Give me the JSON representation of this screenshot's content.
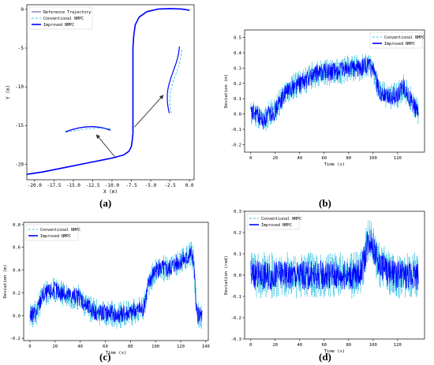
{
  "panel_labels": {
    "a": "(a)",
    "b": "(b)",
    "c": "(c)",
    "d": "(d)"
  },
  "colors": {
    "reference": "#1a1a8c",
    "conventional": "#00b4dc",
    "improved": "#0000ff",
    "arrow": "#333333"
  },
  "chart_data": [
    {
      "id": "a",
      "type": "line",
      "title": "",
      "xlabel": "X (m)",
      "ylabel": "Y (m)",
      "xlim": [
        -21,
        0.6
      ],
      "ylim": [
        -22,
        0.6
      ],
      "xticks": [
        -20.0,
        -17.5,
        -15.0,
        -12.5,
        -10.0,
        -7.5,
        -5.0,
        -2.5,
        0.0
      ],
      "xtick_labels": [
        "-20.0",
        "-17.5",
        "-15.0",
        "-12.5",
        "-10.0",
        "-7.5",
        "-5.0",
        "-2.5",
        "0.0"
      ],
      "yticks": [
        0,
        -5,
        -10,
        -15,
        -20
      ],
      "ytick_labels": [
        "0",
        "-5",
        "-10",
        "-15",
        "-20"
      ],
      "legend": {
        "position": "top-left",
        "entries": [
          "Reference Trajectory",
          "Conventional NMPC",
          "Improved NMPC"
        ]
      },
      "grid": false,
      "series": [
        {
          "name": "Reference Trajectory",
          "style": "solid",
          "x": [
            0,
            -1,
            -2.5,
            -4,
            -5.5,
            -6.5,
            -7,
            -7.2,
            -7.3,
            -7.3,
            -7.3,
            -7.3,
            -7.3,
            -7.4,
            -7.5,
            -7.8,
            -8.5,
            -10,
            -13,
            -16,
            -19,
            -21
          ],
          "y": [
            -0.1,
            0.05,
            0.1,
            0.05,
            -0.3,
            -1,
            -2,
            -3.5,
            -5,
            -8,
            -11,
            -14,
            -16,
            -17,
            -17.7,
            -18.3,
            -18.8,
            -19.2,
            -19.8,
            -20.4,
            -21,
            -21.3
          ]
        },
        {
          "name": "Conventional NMPC",
          "style": "dashed",
          "x": [
            0,
            -1,
            -2.5,
            -4,
            -5.5,
            -6.5,
            -7,
            -7.25,
            -7.35,
            -7.35,
            -7.35,
            -7.35,
            -7.35,
            -7.45,
            -7.55,
            -7.85,
            -8.55,
            -10,
            -13,
            -16,
            -19,
            -21
          ],
          "y": [
            -0.15,
            0.0,
            0.05,
            0.0,
            -0.35,
            -1.05,
            -2.05,
            -3.55,
            -5.05,
            -8.05,
            -11.05,
            -14.05,
            -16.05,
            -17.05,
            -17.75,
            -18.35,
            -18.85,
            -19.25,
            -19.85,
            -20.45,
            -21.05,
            -21.35
          ]
        },
        {
          "name": "Improved NMPC",
          "style": "solid-thick",
          "x": [
            0,
            -1,
            -2.5,
            -4,
            -5.5,
            -6.5,
            -7,
            -7.2,
            -7.3,
            -7.3,
            -7.3,
            -7.3,
            -7.3,
            -7.4,
            -7.5,
            -7.8,
            -8.5,
            -10,
            -13,
            -16,
            -19,
            -21
          ],
          "y": [
            -0.1,
            0.05,
            0.1,
            0.05,
            -0.3,
            -1,
            -2,
            -3.5,
            -5,
            -8,
            -11,
            -14,
            -16,
            -17,
            -17.7,
            -18.3,
            -18.8,
            -19.2,
            -19.8,
            -20.4,
            -21,
            -21.3
          ]
        }
      ]
    },
    {
      "id": "b",
      "type": "line",
      "title": "",
      "xlabel": "Time (s)",
      "ylabel": "Deviation (m)",
      "xlim": [
        -5,
        142
      ],
      "ylim": [
        -0.25,
        0.55
      ],
      "xticks": [
        0,
        20,
        40,
        60,
        80,
        100,
        120
      ],
      "yticks": [
        -0.2,
        -0.1,
        0.0,
        0.1,
        0.2,
        0.3,
        0.4,
        0.5
      ],
      "ytick_labels": [
        "-0.2",
        "-0.1",
        "0.0",
        "0.1",
        "0.2",
        "0.3",
        "0.4",
        "0.5"
      ],
      "legend": {
        "position": "top-right",
        "entries": [
          "Conventional NMPC",
          "Improved NMPC"
        ]
      },
      "grid": false,
      "envelope": {
        "t": [
          0,
          5,
          10,
          15,
          20,
          25,
          30,
          35,
          40,
          45,
          50,
          55,
          60,
          65,
          70,
          75,
          80,
          85,
          90,
          95,
          100,
          105,
          110,
          115,
          120,
          125,
          130,
          135,
          137
        ],
        "mean": [
          0.0,
          0.0,
          -0.05,
          0.0,
          0.02,
          0.1,
          0.15,
          0.18,
          0.2,
          0.22,
          0.25,
          0.27,
          0.28,
          0.27,
          0.28,
          0.28,
          0.3,
          0.3,
          0.3,
          0.32,
          0.28,
          0.15,
          0.12,
          0.12,
          0.12,
          0.18,
          0.1,
          0.03,
          0.0
        ],
        "spread_conv": 0.09,
        "spread_imp": 0.06
      }
    },
    {
      "id": "c",
      "type": "line",
      "title": "",
      "xlabel": "Time (s)",
      "ylabel": "Deviation (m)",
      "xlim": [
        -5,
        142
      ],
      "ylim": [
        -0.22,
        0.82
      ],
      "xticks": [
        0,
        20,
        40,
        60,
        80,
        100,
        120,
        140
      ],
      "yticks": [
        -0.2,
        0.0,
        0.2,
        0.4,
        0.6,
        0.8
      ],
      "ytick_labels": [
        "-0.2",
        "0.0",
        "0.2",
        "0.4",
        "0.6",
        "0.8"
      ],
      "legend": {
        "position": "top-left",
        "entries": [
          "Conventional NMPC",
          "Improved NMPC"
        ]
      },
      "grid": false,
      "envelope": {
        "t": [
          0,
          5,
          10,
          15,
          20,
          25,
          30,
          35,
          40,
          45,
          50,
          55,
          60,
          65,
          70,
          75,
          80,
          85,
          90,
          95,
          100,
          105,
          110,
          115,
          120,
          125,
          128,
          130,
          133,
          137
        ],
        "mean": [
          0.0,
          0.02,
          0.18,
          0.2,
          0.22,
          0.2,
          0.18,
          0.17,
          0.16,
          0.08,
          0.05,
          0.02,
          0.02,
          0.02,
          0.0,
          0.02,
          0.02,
          0.05,
          0.05,
          0.3,
          0.4,
          0.42,
          0.4,
          0.45,
          0.48,
          0.5,
          0.55,
          0.5,
          0.0,
          0.0
        ],
        "spread_conv": 0.12,
        "spread_imp": 0.08
      }
    },
    {
      "id": "d",
      "type": "line",
      "title": "",
      "xlabel": "Time (s)",
      "ylabel": "Deviation (rad)",
      "xlim": [
        -5,
        142
      ],
      "ylim": [
        -0.3,
        0.3
      ],
      "xticks": [
        0,
        20,
        40,
        60,
        80,
        100,
        120
      ],
      "yticks": [
        -0.3,
        -0.2,
        -0.1,
        0.0,
        0.1,
        0.2,
        0.3
      ],
      "ytick_labels": [
        "-0.3",
        "-0.2",
        "-0.1",
        "0.0",
        "0.1",
        "0.2",
        "0.3"
      ],
      "legend": {
        "position": "top-left",
        "entries": [
          "Conventional NMPC",
          "Improved NMPC"
        ]
      },
      "grid": false,
      "envelope": {
        "t": [
          0,
          10,
          20,
          30,
          40,
          50,
          60,
          70,
          80,
          85,
          90,
          93,
          95,
          98,
          100,
          105,
          110,
          115,
          120,
          125,
          130,
          135,
          137
        ],
        "mean": [
          0.0,
          0.0,
          0.0,
          0.0,
          0.0,
          0.0,
          0.0,
          0.0,
          0.0,
          0.0,
          0.02,
          0.08,
          0.15,
          0.17,
          0.13,
          0.05,
          0.03,
          0.0,
          0.0,
          0.0,
          0.0,
          0.0,
          0.0
        ],
        "spread_conv": 0.11,
        "spread_imp": 0.07
      }
    }
  ]
}
